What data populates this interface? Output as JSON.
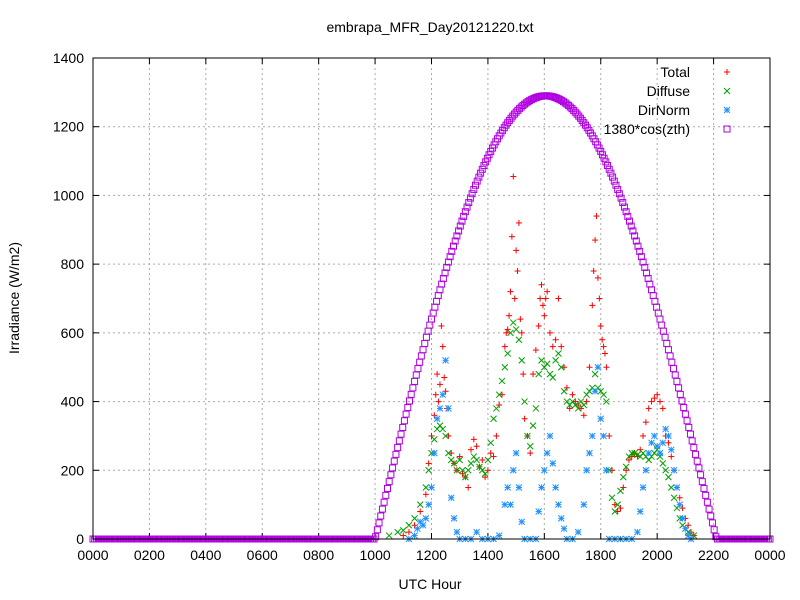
{
  "chart_data": {
    "type": "scatter",
    "title": "embrapa_MFR_Day20121220.txt",
    "xlabel": "UTC Hour",
    "ylabel": "Irradiance (W/m2)",
    "xlim": [
      0,
      2400
    ],
    "ylim": [
      0,
      1400
    ],
    "xticks": [
      "0000",
      "0200",
      "0400",
      "0600",
      "0800",
      "1000",
      "1200",
      "1400",
      "1600",
      "1800",
      "2000",
      "2200",
      "0000"
    ],
    "yticks": [
      "0",
      "200",
      "400",
      "600",
      "800",
      "1000",
      "1200",
      "1400"
    ],
    "grid": true,
    "legend_position": "top-right",
    "series": [
      {
        "name": "Total",
        "marker": "plus",
        "color": "#ff0000",
        "points": [
          [
            1100,
            10
          ],
          [
            1120,
            20
          ],
          [
            1140,
            40
          ],
          [
            1160,
            80
          ],
          [
            1180,
            130
          ],
          [
            1190,
            220
          ],
          [
            1200,
            300
          ],
          [
            1210,
            360
          ],
          [
            1215,
            420
          ],
          [
            1220,
            480
          ],
          [
            1225,
            400
          ],
          [
            1230,
            450
          ],
          [
            1235,
            620
          ],
          [
            1240,
            560
          ],
          [
            1245,
            470
          ],
          [
            1250,
            430
          ],
          [
            1255,
            380
          ],
          [
            1260,
            300
          ],
          [
            1270,
            250
          ],
          [
            1280,
            220
          ],
          [
            1290,
            200
          ],
          [
            1300,
            240
          ],
          [
            1310,
            190
          ],
          [
            1320,
            180
          ],
          [
            1330,
            150
          ],
          [
            1340,
            260
          ],
          [
            1350,
            290
          ],
          [
            1360,
            270
          ],
          [
            1370,
            210
          ],
          [
            1380,
            230
          ],
          [
            1390,
            180
          ],
          [
            1400,
            200
          ],
          [
            1410,
            250
          ],
          [
            1420,
            240
          ],
          [
            1430,
            300
          ],
          [
            1440,
            390
          ],
          [
            1450,
            420
          ],
          [
            1460,
            560
          ],
          [
            1465,
            600
          ],
          [
            1470,
            610
          ],
          [
            1475,
            650
          ],
          [
            1480,
            720
          ],
          [
            1485,
            880
          ],
          [
            1490,
            1055
          ],
          [
            1495,
            700
          ],
          [
            1500,
            840
          ],
          [
            1505,
            780
          ],
          [
            1510,
            920
          ],
          [
            1515,
            640
          ],
          [
            1520,
            600
          ],
          [
            1525,
            480
          ],
          [
            1530,
            350
          ],
          [
            1540,
            300
          ],
          [
            1550,
            250
          ],
          [
            1560,
            480
          ],
          [
            1570,
            550
          ],
          [
            1580,
            620
          ],
          [
            1585,
            700
          ],
          [
            1590,
            740
          ],
          [
            1595,
            680
          ],
          [
            1600,
            650
          ],
          [
            1605,
            700
          ],
          [
            1610,
            720
          ],
          [
            1620,
            600
          ],
          [
            1630,
            560
          ],
          [
            1640,
            580
          ],
          [
            1650,
            700
          ],
          [
            1660,
            560
          ],
          [
            1670,
            500
          ],
          [
            1680,
            440
          ],
          [
            1690,
            380
          ],
          [
            1700,
            420
          ],
          [
            1710,
            400
          ],
          [
            1720,
            390
          ],
          [
            1730,
            380
          ],
          [
            1740,
            360
          ],
          [
            1750,
            400
          ],
          [
            1760,
            500
          ],
          [
            1770,
            680
          ],
          [
            1775,
            780
          ],
          [
            1780,
            870
          ],
          [
            1785,
            940
          ],
          [
            1790,
            760
          ],
          [
            1795,
            700
          ],
          [
            1800,
            620
          ],
          [
            1805,
            580
          ],
          [
            1810,
            560
          ],
          [
            1815,
            540
          ],
          [
            1820,
            500
          ],
          [
            1830,
            300
          ],
          [
            1840,
            200
          ],
          [
            1850,
            100
          ],
          [
            1860,
            80
          ],
          [
            1870,
            90
          ],
          [
            1880,
            150
          ],
          [
            1890,
            200
          ],
          [
            1900,
            230
          ],
          [
            1910,
            240
          ],
          [
            1920,
            250
          ],
          [
            1930,
            240
          ],
          [
            1940,
            260
          ],
          [
            1950,
            300
          ],
          [
            1960,
            340
          ],
          [
            1970,
            380
          ],
          [
            1980,
            400
          ],
          [
            1990,
            410
          ],
          [
            2000,
            420
          ],
          [
            2010,
            400
          ],
          [
            2020,
            380
          ],
          [
            2030,
            300
          ],
          [
            2040,
            280
          ],
          [
            2050,
            240
          ],
          [
            2060,
            200
          ],
          [
            2070,
            150
          ],
          [
            2080,
            120
          ],
          [
            2090,
            90
          ],
          [
            2100,
            60
          ],
          [
            2110,
            40
          ],
          [
            2120,
            20
          ],
          [
            2130,
            10
          ]
        ]
      },
      {
        "name": "Diffuse",
        "marker": "cross",
        "color": "#00a000",
        "points": [
          [
            1050,
            10
          ],
          [
            1080,
            20
          ],
          [
            1100,
            25
          ],
          [
            1120,
            40
          ],
          [
            1140,
            60
          ],
          [
            1160,
            100
          ],
          [
            1180,
            150
          ],
          [
            1190,
            200
          ],
          [
            1200,
            250
          ],
          [
            1210,
            290
          ],
          [
            1220,
            320
          ],
          [
            1230,
            330
          ],
          [
            1240,
            320
          ],
          [
            1250,
            300
          ],
          [
            1260,
            250
          ],
          [
            1270,
            230
          ],
          [
            1280,
            220
          ],
          [
            1290,
            200
          ],
          [
            1300,
            230
          ],
          [
            1310,
            200
          ],
          [
            1320,
            180
          ],
          [
            1330,
            200
          ],
          [
            1340,
            220
          ],
          [
            1350,
            240
          ],
          [
            1360,
            230
          ],
          [
            1370,
            210
          ],
          [
            1380,
            200
          ],
          [
            1390,
            190
          ],
          [
            1400,
            230
          ],
          [
            1410,
            280
          ],
          [
            1420,
            350
          ],
          [
            1430,
            380
          ],
          [
            1440,
            420
          ],
          [
            1450,
            460
          ],
          [
            1460,
            500
          ],
          [
            1470,
            540
          ],
          [
            1480,
            600
          ],
          [
            1490,
            630
          ],
          [
            1500,
            610
          ],
          [
            1510,
            580
          ],
          [
            1520,
            520
          ],
          [
            1530,
            400
          ],
          [
            1540,
            300
          ],
          [
            1550,
            270
          ],
          [
            1560,
            330
          ],
          [
            1570,
            380
          ],
          [
            1580,
            480
          ],
          [
            1590,
            520
          ],
          [
            1600,
            500
          ],
          [
            1610,
            510
          ],
          [
            1620,
            480
          ],
          [
            1630,
            470
          ],
          [
            1640,
            520
          ],
          [
            1650,
            540
          ],
          [
            1660,
            500
          ],
          [
            1670,
            430
          ],
          [
            1680,
            400
          ],
          [
            1690,
            390
          ],
          [
            1700,
            400
          ],
          [
            1710,
            390
          ],
          [
            1720,
            380
          ],
          [
            1730,
            400
          ],
          [
            1740,
            390
          ],
          [
            1750,
            420
          ],
          [
            1760,
            430
          ],
          [
            1770,
            440
          ],
          [
            1780,
            480
          ],
          [
            1790,
            440
          ],
          [
            1800,
            430
          ],
          [
            1810,
            420
          ],
          [
            1820,
            400
          ],
          [
            1830,
            200
          ],
          [
            1840,
            120
          ],
          [
            1850,
            80
          ],
          [
            1860,
            100
          ],
          [
            1870,
            140
          ],
          [
            1880,
            180
          ],
          [
            1890,
            210
          ],
          [
            1900,
            240
          ],
          [
            1910,
            250
          ],
          [
            1920,
            250
          ],
          [
            1930,
            245
          ],
          [
            1940,
            240
          ],
          [
            1950,
            250
          ],
          [
            1960,
            240
          ],
          [
            1970,
            230
          ],
          [
            1980,
            240
          ],
          [
            1990,
            250
          ],
          [
            2000,
            260
          ],
          [
            2010,
            240
          ],
          [
            2020,
            220
          ],
          [
            2030,
            200
          ],
          [
            2040,
            180
          ],
          [
            2050,
            150
          ],
          [
            2060,
            120
          ],
          [
            2070,
            90
          ],
          [
            2080,
            60
          ],
          [
            2090,
            40
          ],
          [
            2100,
            30
          ],
          [
            2110,
            20
          ],
          [
            2130,
            10
          ]
        ]
      },
      {
        "name": "DirNorm",
        "marker": "star",
        "color": "#1e90ff",
        "points": [
          [
            1120,
            0
          ],
          [
            1140,
            10
          ],
          [
            1150,
            30
          ],
          [
            1160,
            50
          ],
          [
            1170,
            40
          ],
          [
            1180,
            60
          ],
          [
            1190,
            100
          ],
          [
            1200,
            150
          ],
          [
            1210,
            250
          ],
          [
            1220,
            350
          ],
          [
            1230,
            380
          ],
          [
            1240,
            420
          ],
          [
            1250,
            520
          ],
          [
            1260,
            380
          ],
          [
            1270,
            120
          ],
          [
            1280,
            60
          ],
          [
            1290,
            20
          ],
          [
            1300,
            0
          ],
          [
            1320,
            0
          ],
          [
            1340,
            0
          ],
          [
            1360,
            20
          ],
          [
            1380,
            0
          ],
          [
            1400,
            0
          ],
          [
            1420,
            0
          ],
          [
            1440,
            10
          ],
          [
            1460,
            100
          ],
          [
            1470,
            150
          ],
          [
            1480,
            100
          ],
          [
            1490,
            200
          ],
          [
            1500,
            250
          ],
          [
            1510,
            150
          ],
          [
            1520,
            50
          ],
          [
            1530,
            0
          ],
          [
            1550,
            0
          ],
          [
            1570,
            0
          ],
          [
            1580,
            80
          ],
          [
            1590,
            150
          ],
          [
            1600,
            200
          ],
          [
            1610,
            250
          ],
          [
            1620,
            300
          ],
          [
            1630,
            220
          ],
          [
            1640,
            150
          ],
          [
            1650,
            100
          ],
          [
            1660,
            60
          ],
          [
            1670,
            30
          ],
          [
            1680,
            0
          ],
          [
            1700,
            0
          ],
          [
            1720,
            20
          ],
          [
            1740,
            100
          ],
          [
            1750,
            200
          ],
          [
            1760,
            250
          ],
          [
            1770,
            300
          ],
          [
            1780,
            430
          ],
          [
            1790,
            500
          ],
          [
            1800,
            350
          ],
          [
            1810,
            300
          ],
          [
            1820,
            200
          ],
          [
            1830,
            0
          ],
          [
            1850,
            0
          ],
          [
            1870,
            0
          ],
          [
            1890,
            0
          ],
          [
            1910,
            0
          ],
          [
            1930,
            20
          ],
          [
            1940,
            80
          ],
          [
            1950,
            150
          ],
          [
            1960,
            200
          ],
          [
            1970,
            250
          ],
          [
            1980,
            280
          ],
          [
            1990,
            300
          ],
          [
            2000,
            270
          ],
          [
            2010,
            250
          ],
          [
            2020,
            280
          ],
          [
            2030,
            320
          ],
          [
            2040,
            300
          ],
          [
            2050,
            260
          ],
          [
            2060,
            200
          ],
          [
            2070,
            150
          ],
          [
            2080,
            100
          ],
          [
            2090,
            60
          ],
          [
            2100,
            30
          ],
          [
            2110,
            10
          ],
          [
            2120,
            0
          ]
        ]
      },
      {
        "name": "1380*cos(zth)",
        "marker": "square",
        "color": "#b000e0",
        "formula": {
          "peak": 1290,
          "rise": 1000,
          "set": 2210,
          "noon": 1605
        }
      }
    ]
  }
}
